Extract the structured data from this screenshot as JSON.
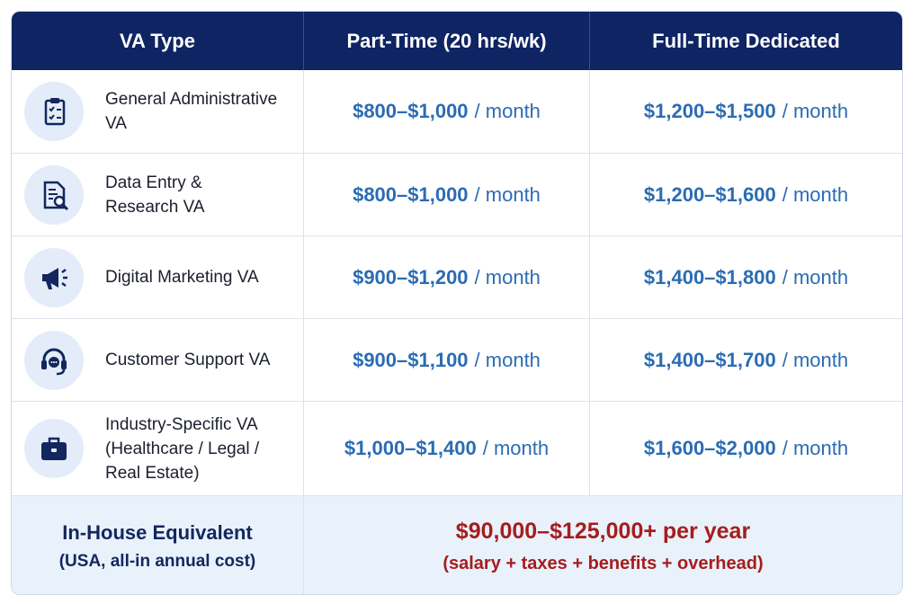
{
  "table": {
    "header": [
      "VA Type",
      "Part-Time (20 hrs/wk)",
      "Full-Time Dedicated"
    ],
    "rows": [
      {
        "name": "General Administrative VA",
        "part_time": {
          "price": "$800–$1,000",
          "unit": "/ month"
        },
        "full_time": {
          "price": "$1,200–$1,500",
          "unit": "/ month"
        }
      },
      {
        "name": "Data Entry &\nResearch VA",
        "part_time": {
          "price": "$800–$1,000",
          "unit": "/ month"
        },
        "full_time": {
          "price": "$1,200–$1,600",
          "unit": "/ month"
        }
      },
      {
        "name": "Digital Marketing VA",
        "part_time": {
          "price": "$900–$1,200",
          "unit": "/ month"
        },
        "full_time": {
          "price": "$1,400–$1,800",
          "unit": "/ month"
        }
      },
      {
        "name": "Customer Support VA",
        "part_time": {
          "price": "$900–$1,100",
          "unit": "/ month"
        },
        "full_time": {
          "price": "$1,400–$1,700",
          "unit": "/ month"
        }
      },
      {
        "name": "Industry-Specific VA\n(Healthcare / Legal /\nReal Estate)",
        "part_time": {
          "price": "$1,000–$1,400",
          "unit": "/ month"
        },
        "full_time": {
          "price": "$1,600–$2,000",
          "unit": "/ month"
        }
      }
    ],
    "footer": {
      "label": "In-House Equivalent",
      "sublabel": "(USA, all-in annual cost)",
      "cost": "$90,000–$125,000+ per year",
      "note": "(salary + taxes + benefits + overhead)"
    }
  }
}
